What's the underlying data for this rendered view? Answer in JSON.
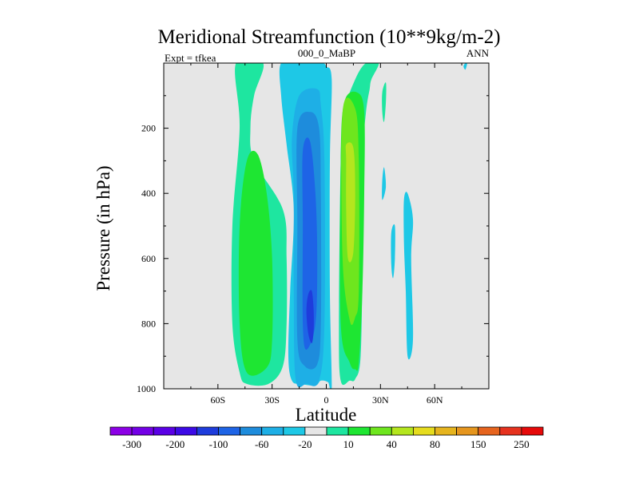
{
  "chart_data": {
    "type": "contour",
    "title": "Meridional Streamfunction (10**9kg/m-2)",
    "subtitle_left": "Expt = tfkea",
    "subtitle_center": "000_0_MaBP",
    "subtitle_right": "ANN",
    "xlabel": "Latitude",
    "ylabel": "Pressure (in hPa)",
    "xlim": [
      -90,
      90
    ],
    "ylim": [
      1000,
      0
    ],
    "x_ticks": [
      {
        "value": -60,
        "label": "60S"
      },
      {
        "value": -30,
        "label": "30S"
      },
      {
        "value": 0,
        "label": "0"
      },
      {
        "value": 30,
        "label": "30N"
      },
      {
        "value": 60,
        "label": "60N"
      }
    ],
    "y_ticks": [
      {
        "value": 200,
        "label": "200"
      },
      {
        "value": 400,
        "label": "400"
      },
      {
        "value": 600,
        "label": "600"
      },
      {
        "value": 800,
        "label": "800"
      },
      {
        "value": 1000,
        "label": "1000"
      }
    ],
    "background_color": "#e6e6e6",
    "colorbar": {
      "levels": [
        "-300",
        "-200",
        "-100",
        "-60",
        "-20",
        "10",
        "40",
        "80",
        "150",
        "250"
      ],
      "colors": [
        "#8c00e6",
        "#7300e6",
        "#5a00e6",
        "#3c0ae6",
        "#1e3cdc",
        "#1e64e6",
        "#1e8cdc",
        "#1eafe6",
        "#1ec8e6",
        "#e6e6e6",
        "#1ee6a0",
        "#1ee632",
        "#6ee61e",
        "#b4e61e",
        "#e6dc1e",
        "#e6b41e",
        "#e6961e",
        "#e6641e",
        "#e6321e",
        "#e60a0a"
      ]
    },
    "regions": [
      {
        "level": 10,
        "color": "#1ee6a0",
        "lat": [
          -50,
          -35,
          -40,
          -42,
          -40,
          -24,
          -22,
          -22,
          -24,
          -32,
          -44,
          -48,
          -52,
          -52,
          -48
        ],
        "p": [
          0,
          0,
          100,
          200,
          300,
          450,
          600,
          800,
          930,
          985,
          985,
          950,
          800,
          500,
          200
        ]
      },
      {
        "level": 40,
        "color": "#1ee632",
        "lat": [
          -44,
          -38,
          -33,
          -30,
          -30,
          -33,
          -44,
          -48,
          -48
        ],
        "p": [
          300,
          280,
          400,
          600,
          850,
          935,
          950,
          800,
          500
        ]
      },
      {
        "level": -20,
        "color": "#1ec8e6",
        "lat": [
          -25,
          -14,
          -7,
          -2,
          0,
          3,
          2,
          2,
          3,
          1,
          -3,
          -6,
          -14,
          -19,
          -21,
          -20,
          -18,
          -22,
          -25
        ],
        "p": [
          0,
          0,
          0,
          0,
          10,
          50,
          300,
          700,
          1000,
          980,
          975,
          990,
          985,
          975,
          900,
          700,
          450,
          250,
          100
        ]
      },
      {
        "level": -60,
        "color": "#1eafe6",
        "lat": [
          -19,
          -15,
          -5,
          -3,
          -1,
          -1,
          -4,
          -11,
          -17,
          -18,
          -18
        ],
        "p": [
          230,
          100,
          80,
          130,
          300,
          800,
          975,
          985,
          970,
          700,
          400
        ]
      },
      {
        "level": -100,
        "color": "#1e8cdc",
        "lat": [
          -16,
          -9,
          -4,
          -3,
          -3,
          -5,
          -12,
          -16,
          -16
        ],
        "p": [
          200,
          150,
          200,
          400,
          800,
          925,
          930,
          850,
          500
        ]
      },
      {
        "level": -150,
        "color": "#1e64e6",
        "lat": [
          -13,
          -9,
          -6,
          -5,
          -6,
          -11,
          -13,
          -13
        ],
        "p": [
          270,
          240,
          400,
          600,
          800,
          880,
          800,
          500
        ]
      },
      {
        "level": -200,
        "color": "#1e3cdc",
        "lat": [
          -10,
          -8,
          -7,
          -7,
          -8,
          -10,
          -11
        ],
        "p": [
          710,
          700,
          760,
          820,
          860,
          830,
          760
        ]
      },
      {
        "level": 10,
        "color": "#1ee6a0",
        "lat": [
          22,
          29,
          25,
          24,
          22,
          20,
          20,
          19,
          16,
          13,
          8,
          7,
          8,
          10,
          16
        ],
        "p": [
          0,
          0,
          50,
          80,
          150,
          300,
          600,
          900,
          970,
          975,
          975,
          800,
          300,
          150,
          50
        ]
      },
      {
        "level": 40,
        "color": "#1ee632",
        "lat": [
          17,
          21,
          21,
          20,
          18,
          16,
          13,
          8,
          8,
          10
        ],
        "p": [
          90,
          150,
          400,
          700,
          920,
          940,
          920,
          800,
          300,
          120
        ]
      },
      {
        "level": 80,
        "color": "#6ee61e",
        "lat": [
          9,
          16,
          18,
          18,
          16,
          13,
          9
        ],
        "p": [
          150,
          140,
          300,
          700,
          780,
          790,
          600
        ]
      },
      {
        "level": 150,
        "color": "#b4e61e",
        "lat": [
          11,
          15,
          16,
          15,
          12,
          11,
          11
        ],
        "p": [
          250,
          260,
          400,
          580,
          600,
          450,
          300
        ]
      },
      {
        "level": -20,
        "color": "#1ec8e6",
        "lat": [
          43,
          45,
          48,
          47,
          48,
          45,
          44,
          43
        ],
        "p": [
          420,
          400,
          480,
          600,
          850,
          900,
          700,
          550
        ]
      },
      {
        "level": -20,
        "color": "#1ec8e6",
        "lat": [
          31,
          32,
          33,
          31
        ],
        "p": [
          360,
          320,
          380,
          420
        ]
      },
      {
        "level": -20,
        "color": "#1ec8e6",
        "lat": [
          36,
          38,
          38,
          37,
          36
        ],
        "p": [
          520,
          500,
          600,
          660,
          620
        ]
      },
      {
        "level": 10,
        "color": "#1ee6a0",
        "lat": [
          31,
          33,
          33,
          32,
          31
        ],
        "p": [
          90,
          60,
          120,
          180,
          150
        ]
      },
      {
        "level": -20,
        "color": "#1ec8e6",
        "lat": [
          77,
          78,
          77,
          76
        ],
        "p": [
          0,
          0,
          20,
          10
        ]
      }
    ]
  }
}
